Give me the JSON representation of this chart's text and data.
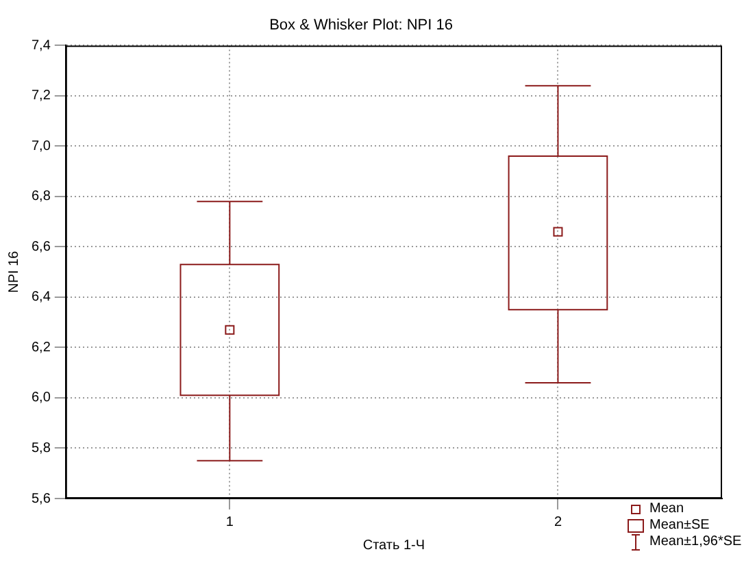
{
  "chart_data": {
    "type": "box",
    "title": "Box & Whisker Plot: NPI 16",
    "xlabel": "Стать 1-Ч",
    "ylabel": "NPI 16",
    "categories": [
      "1",
      "2"
    ],
    "boxes": [
      {
        "low": 5.75,
        "q1": 6.01,
        "q3": 6.53,
        "high": 6.78,
        "mean": 6.27
      },
      {
        "low": 6.06,
        "q1": 6.35,
        "q3": 6.96,
        "high": 7.24,
        "mean": 6.66
      }
    ],
    "color": "#8b1a1a",
    "ylim": [
      5.6,
      7.4
    ],
    "yticks": [
      {
        "value": 5.6,
        "label": "5,6"
      },
      {
        "value": 5.8,
        "label": "5,8"
      },
      {
        "value": 6,
        "label": "6,0"
      },
      {
        "value": 6.2,
        "label": "6,2"
      },
      {
        "value": 6.4,
        "label": "6,4"
      },
      {
        "value": 6.6,
        "label": "6,6"
      },
      {
        "value": 6.8,
        "label": "6,8"
      },
      {
        "value": 7,
        "label": "7,0"
      },
      {
        "value": 7.2,
        "label": "7,2"
      },
      {
        "value": 7.4,
        "label": "7,4"
      }
    ],
    "grid": true,
    "annotations": [
      "Mean",
      "Mean±SE",
      "Mean±1,96*SE"
    ]
  }
}
